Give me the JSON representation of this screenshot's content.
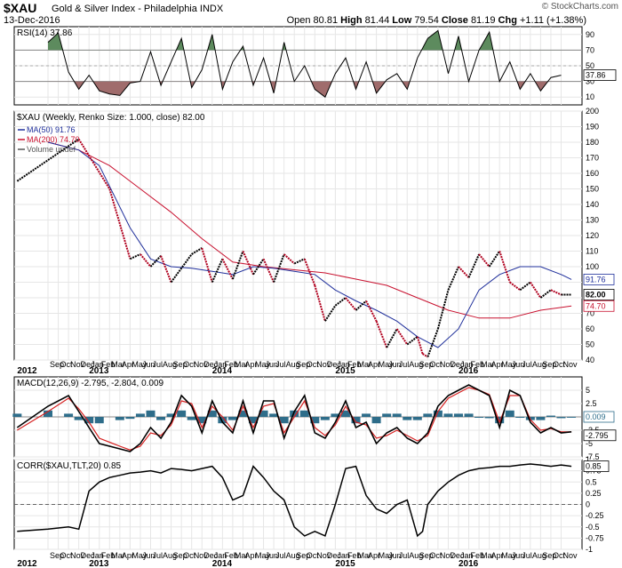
{
  "header": {
    "symbol": "$XAU",
    "subtitle": "Gold & Silver Index - Philadelphia INDX",
    "date": "13-Dec-2016",
    "open_label": "Open",
    "open": "80.81",
    "high_label": "High",
    "high": "81.44",
    "low_label": "Low",
    "low": "79.54",
    "close_label": "Close",
    "close": "81.19",
    "chg_label": "Chg",
    "chg": "+1.11 (+1.38%)",
    "watermark": "© StockCharts.com"
  },
  "axis": {
    "months": [
      "Sep",
      "Oct",
      "Nov",
      "Dec",
      "Jan",
      "Feb",
      "Mar",
      "Apr",
      "May",
      "Jun",
      "Jul",
      "Aug",
      "Sep",
      "Oct",
      "Nov",
      "Dec",
      "Jan",
      "Feb",
      "Mar",
      "Apr",
      "May",
      "Jun",
      "Jul",
      "Aug",
      "Sep",
      "Oct",
      "Nov",
      "Dec",
      "Jan",
      "Feb",
      "Mar",
      "Apr",
      "May",
      "Jun",
      "Jul",
      "Aug",
      "Sep",
      "Oct",
      "Nov",
      "Dec",
      "Jan",
      "Feb",
      "Mar",
      "Apr",
      "May",
      "Jun",
      "Jul",
      "Aug",
      "Sep",
      "Oct",
      "Nov"
    ],
    "month_x_offset": 38,
    "month_spacing": 11.55,
    "year_labels": [
      {
        "label": "2012",
        "month_index": -3
      },
      {
        "label": "2013",
        "month_index": 4
      },
      {
        "label": "2014",
        "month_index": 16
      },
      {
        "label": "2015",
        "month_index": 28
      },
      {
        "label": "2016",
        "month_index": 40
      }
    ]
  },
  "chart_data": [
    {
      "type": "line",
      "title": "RSI(14) 37.86",
      "ylim": [
        0,
        100
      ],
      "yticks": [
        10,
        30,
        50,
        70,
        90
      ],
      "overbought": 70,
      "oversold": 30,
      "last_value_label": "37.86",
      "series": [
        {
          "name": "RSI(14)",
          "x": [
            0,
            1,
            2,
            3,
            4,
            5,
            6,
            7,
            8,
            9,
            10,
            11,
            12,
            13,
            14,
            15,
            16,
            17,
            18,
            19,
            20,
            21,
            22,
            23,
            24,
            25,
            26,
            27,
            28,
            29,
            30,
            31,
            32,
            33,
            34,
            35,
            36,
            37,
            38,
            39,
            40,
            41,
            42,
            43,
            44,
            45,
            46,
            47,
            48,
            49,
            50
          ],
          "values": [
            80,
            92,
            42,
            20,
            38,
            18,
            14,
            12,
            28,
            30,
            68,
            25,
            55,
            85,
            22,
            45,
            90,
            20,
            55,
            75,
            25,
            60,
            15,
            80,
            30,
            50,
            20,
            10,
            40,
            60,
            20,
            55,
            15,
            32,
            40,
            20,
            60,
            85,
            95,
            40,
            88,
            30,
            70,
            93,
            30,
            55,
            20,
            40,
            18,
            35,
            38
          ]
        }
      ]
    },
    {
      "type": "line",
      "title": "$XAU (Weekly, Renko Size: 1.000, close) 82.00",
      "ylim": [
        40,
        200
      ],
      "yticks": [
        40,
        50,
        60,
        70,
        80,
        90,
        100,
        110,
        120,
        130,
        140,
        150,
        160,
        170,
        180,
        190,
        200
      ],
      "legend": [
        "MA(50) 91.76",
        "MA(200) 74.70",
        "Volume undef"
      ],
      "last_labels": {
        "ma50": "91.76",
        "price": "82.00",
        "ma200": "74.70"
      },
      "series": [
        {
          "name": "$XAU",
          "x": [
            -3,
            3,
            6,
            8,
            9,
            10,
            11,
            12,
            14,
            15,
            16,
            17,
            18,
            19,
            20,
            21,
            22,
            23,
            24,
            25,
            26,
            27,
            28,
            29,
            30,
            31,
            32,
            33,
            34,
            35,
            36,
            36.5,
            37,
            38,
            39,
            40,
            41,
            42,
            43,
            44,
            45,
            46,
            47,
            48,
            49,
            50,
            51
          ],
          "values": [
            155,
            182,
            150,
            105,
            108,
            100,
            107,
            90,
            108,
            112,
            90,
            105,
            92,
            110,
            95,
            105,
            90,
            108,
            102,
            105,
            88,
            65,
            75,
            80,
            72,
            78,
            65,
            48,
            60,
            50,
            55,
            44,
            42,
            60,
            85,
            100,
            93,
            108,
            100,
            110,
            90,
            85,
            90,
            80,
            85,
            82,
            82
          ]
        },
        {
          "name": "MA(50)",
          "x": [
            0,
            3,
            5,
            8,
            10,
            12,
            14,
            16,
            18,
            20,
            22,
            24,
            26,
            28,
            30,
            32,
            34,
            36,
            38,
            40,
            42,
            44,
            46,
            48,
            50,
            51
          ],
          "values": [
            180,
            175,
            165,
            125,
            105,
            100,
            99,
            97,
            95,
            100,
            99,
            97,
            95,
            85,
            78,
            72,
            65,
            55,
            48,
            60,
            85,
            95,
            100,
            100,
            95,
            91.76
          ]
        },
        {
          "name": "MA(200)",
          "x": [
            0,
            3,
            6,
            9,
            12,
            15,
            18,
            21,
            24,
            27,
            30,
            33,
            36,
            39,
            42,
            45,
            48,
            51
          ],
          "values": [
            180,
            175,
            165,
            150,
            135,
            118,
            103,
            100,
            98,
            96,
            92,
            88,
            80,
            72,
            67,
            67,
            72,
            74.7
          ]
        }
      ]
    },
    {
      "type": "line",
      "title": "MACD(12,26,9) -2.795, -2.804, 0.009",
      "ylim": [
        -7.5,
        7.5
      ],
      "yticks": [
        -7.5,
        -5.0,
        -2.5,
        0,
        2.5,
        5.0
      ],
      "last_labels": {
        "macd": "-2.795",
        "hist": "0.009"
      },
      "series": [
        {
          "name": "MACD",
          "x": [
            -3,
            0,
            2,
            3,
            4,
            5,
            7,
            8,
            9,
            10,
            11,
            12,
            13,
            14,
            15,
            16,
            17,
            18,
            19,
            20,
            21,
            22,
            23,
            24,
            25,
            26,
            27,
            28,
            29,
            30,
            31,
            32,
            33,
            34,
            35,
            36,
            37,
            38,
            39,
            40,
            41,
            42,
            43,
            44,
            45,
            46,
            47,
            48,
            49,
            50,
            51
          ],
          "values": [
            -2,
            2,
            4,
            1,
            -2,
            -5,
            -6,
            -6.5,
            -5,
            -2,
            -4,
            -1,
            4,
            2,
            -3,
            3,
            -1,
            -3,
            3,
            -3,
            3,
            3,
            -4,
            1,
            4,
            -3,
            -4,
            -1,
            3,
            -2,
            -1,
            -5,
            -3,
            -2,
            -4,
            -5,
            -3,
            2,
            4,
            5,
            6,
            5,
            4,
            -2,
            5,
            4,
            -1,
            -3,
            -2,
            -3,
            -2.795
          ]
        },
        {
          "name": "Signal",
          "x": [
            -3,
            0,
            2,
            3,
            4,
            5,
            7,
            8,
            9,
            10,
            11,
            12,
            13,
            14,
            15,
            16,
            17,
            18,
            19,
            20,
            21,
            22,
            23,
            24,
            25,
            26,
            27,
            28,
            29,
            30,
            31,
            32,
            33,
            34,
            35,
            36,
            37,
            38,
            39,
            40,
            41,
            42,
            43,
            44,
            45,
            46,
            47,
            48,
            49,
            50,
            51
          ],
          "values": [
            -2.5,
            1,
            3.5,
            1.5,
            -1,
            -4,
            -5.5,
            -6.2,
            -5.5,
            -3,
            -3.5,
            -1.5,
            3,
            2.5,
            -2,
            2,
            0,
            -2.5,
            2,
            -2,
            2,
            2.5,
            -3,
            0,
            3,
            -2,
            -3.5,
            -1.5,
            2,
            -1,
            -1.5,
            -4,
            -3.5,
            -2.5,
            -3.5,
            -4.5,
            -3.5,
            1,
            3.5,
            4.5,
            5.5,
            5,
            4.2,
            -1,
            4,
            4,
            -0.5,
            -2.5,
            -2.2,
            -2.8,
            -2.804
          ]
        },
        {
          "name": "Histogram",
          "x": [
            -3,
            0,
            2,
            3,
            4,
            5,
            7,
            8,
            9,
            10,
            11,
            12,
            13,
            14,
            15,
            16,
            17,
            18,
            19,
            20,
            21,
            22,
            23,
            24,
            25,
            26,
            27,
            28,
            29,
            30,
            31,
            32,
            33,
            34,
            35,
            36,
            37,
            38,
            39,
            40,
            41,
            42,
            43,
            44,
            45,
            46,
            47,
            48,
            49,
            50,
            51
          ],
          "values": [
            0.5,
            1,
            0.5,
            -0.5,
            -1,
            -1,
            -0.5,
            -0.3,
            0.5,
            1,
            -0.5,
            0.5,
            1,
            -0.5,
            -1,
            1,
            -1,
            -0.5,
            1,
            -1,
            1,
            0.5,
            -1,
            1,
            1,
            -1,
            -0.5,
            0.5,
            1,
            -1,
            0.5,
            -1,
            0.5,
            0.5,
            -0.5,
            -0.5,
            0.5,
            1,
            0.5,
            0.5,
            0.5,
            0,
            -0.2,
            -1,
            1,
            0,
            -0.5,
            -0.5,
            0.2,
            -0.2,
            0.009
          ]
        }
      ]
    },
    {
      "type": "line",
      "title": "CORR($XAU,TLT,20) 0.85",
      "ylim": [
        -1.0,
        1.0
      ],
      "yticks": [
        -1.0,
        -0.75,
        -0.5,
        -0.25,
        0.0,
        0.25,
        0.5,
        0.75,
        1.0
      ],
      "last_value_label": "0.85",
      "series": [
        {
          "name": "CORR",
          "x": [
            -3,
            0,
            2,
            3,
            4,
            5,
            6,
            7,
            8,
            9,
            10,
            11,
            12,
            13,
            14,
            15,
            16,
            17,
            18,
            19,
            20,
            21,
            22,
            23,
            24,
            25,
            26,
            27,
            28,
            29,
            30,
            31,
            32,
            33,
            34,
            35,
            36,
            36.5,
            37,
            38,
            39,
            40,
            41,
            42,
            43,
            44,
            45,
            46,
            47,
            48,
            49,
            50,
            51
          ],
          "values": [
            -0.6,
            -0.55,
            -0.5,
            -0.55,
            0.3,
            0.5,
            0.6,
            0.65,
            0.7,
            0.72,
            0.75,
            0.7,
            0.8,
            0.78,
            0.75,
            0.8,
            0.85,
            0.6,
            0.1,
            0.2,
            0.85,
            0.6,
            0.3,
            0.1,
            -0.5,
            -0.7,
            -0.6,
            -0.7,
            0.0,
            0.8,
            0.85,
            0.2,
            -0.1,
            -0.2,
            0.0,
            0.1,
            -0.7,
            -0.6,
            0.0,
            0.3,
            0.5,
            0.65,
            0.75,
            0.8,
            0.82,
            0.85,
            0.85,
            0.88,
            0.9,
            0.88,
            0.85,
            0.88,
            0.85
          ]
        }
      ]
    }
  ]
}
